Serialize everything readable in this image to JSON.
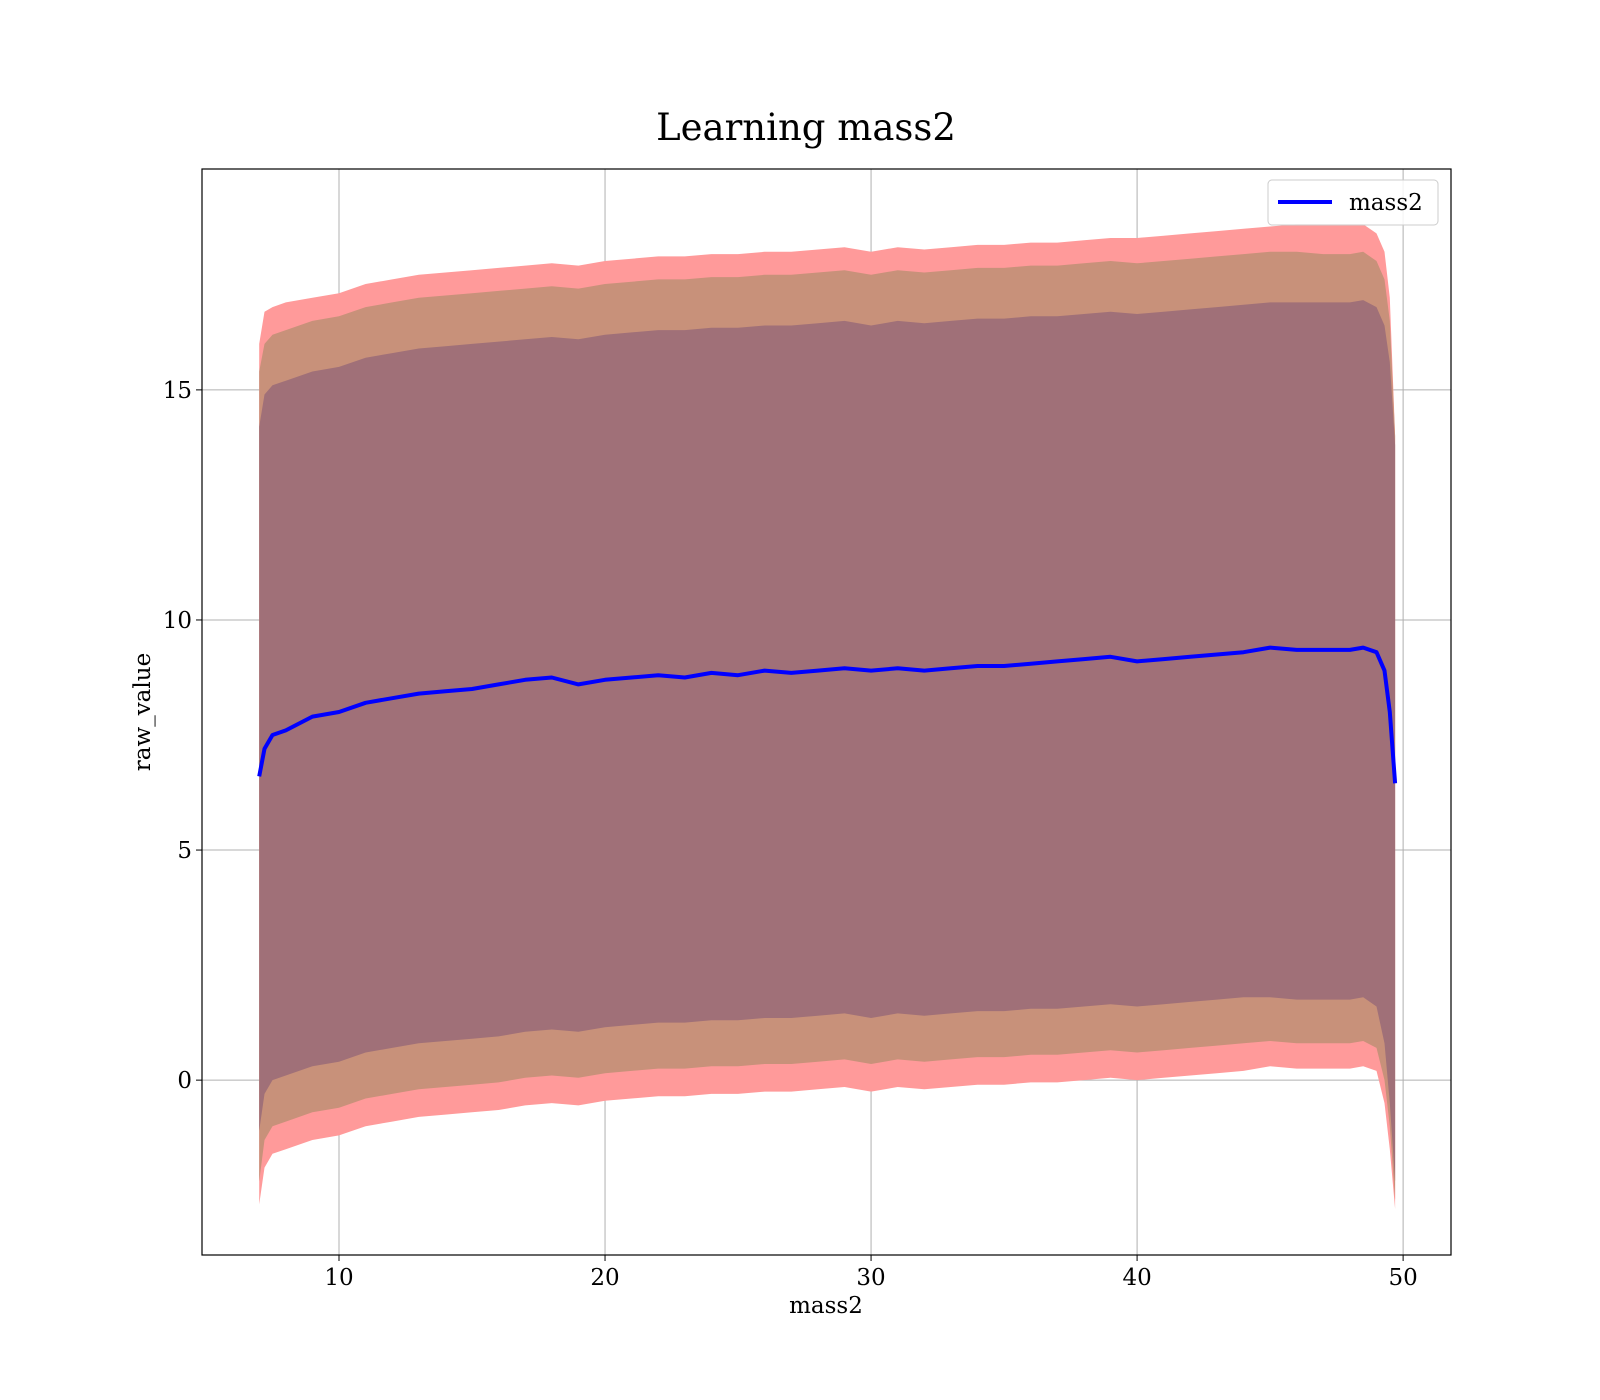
{
  "chart_data": {
    "type": "area",
    "title": "Learning mass2",
    "xlabel": "mass2",
    "ylabel": "raw_value",
    "xlim": [
      4.85,
      51.8
    ],
    "ylim": [
      -3.8,
      19.8
    ],
    "xticks": [
      10,
      20,
      30,
      40,
      50
    ],
    "yticks": [
      0,
      5,
      10,
      15
    ],
    "grid": true,
    "legend": {
      "placement": "top-right",
      "entries": [
        {
          "name": "mass2",
          "color": "#0000ff"
        }
      ]
    },
    "series": [
      {
        "name": "mass2",
        "kind": "line",
        "color": "#0000ff",
        "x": [
          7,
          7.2,
          7.5,
          8,
          9,
          10,
          11,
          12,
          13,
          14,
          15,
          16,
          17,
          18,
          19,
          20,
          21,
          22,
          23,
          24,
          25,
          26,
          27,
          28,
          29,
          30,
          31,
          32,
          33,
          34,
          35,
          36,
          37,
          38,
          39,
          40,
          41,
          42,
          43,
          44,
          45,
          46,
          47,
          48,
          48.5,
          49,
          49.3,
          49.5,
          49.7
        ],
        "y": [
          6.6,
          7.2,
          7.5,
          7.6,
          7.9,
          8.0,
          8.2,
          8.3,
          8.4,
          8.45,
          8.5,
          8.6,
          8.7,
          8.75,
          8.6,
          8.7,
          8.75,
          8.8,
          8.75,
          8.85,
          8.8,
          8.9,
          8.85,
          8.9,
          8.95,
          8.9,
          8.95,
          8.9,
          8.95,
          9.0,
          9.0,
          9.05,
          9.1,
          9.15,
          9.2,
          9.1,
          9.15,
          9.2,
          9.25,
          9.3,
          9.4,
          9.35,
          9.35,
          9.35,
          9.4,
          9.3,
          8.9,
          8.0,
          6.45
        ]
      }
    ],
    "bands": [
      {
        "name": "outer",
        "color": "#ff9a9a",
        "x": [
          7,
          7.2,
          7.5,
          8,
          9,
          10,
          11,
          12,
          13,
          14,
          15,
          16,
          17,
          18,
          19,
          20,
          21,
          22,
          23,
          24,
          25,
          26,
          27,
          28,
          29,
          30,
          31,
          32,
          33,
          34,
          35,
          36,
          37,
          38,
          39,
          40,
          41,
          42,
          43,
          44,
          45,
          46,
          47,
          48,
          48.5,
          49,
          49.3,
          49.5,
          49.7
        ],
        "upper": [
          16.0,
          16.7,
          16.8,
          16.9,
          17.0,
          17.1,
          17.3,
          17.4,
          17.5,
          17.55,
          17.6,
          17.65,
          17.7,
          17.75,
          17.7,
          17.8,
          17.85,
          17.9,
          17.9,
          17.95,
          17.95,
          18.0,
          18.0,
          18.05,
          18.1,
          18.0,
          18.1,
          18.05,
          18.1,
          18.15,
          18.15,
          18.2,
          18.2,
          18.25,
          18.3,
          18.3,
          18.35,
          18.4,
          18.45,
          18.5,
          18.55,
          18.6,
          18.6,
          18.6,
          18.6,
          18.4,
          18.0,
          17.0,
          14.0
        ],
        "lower": [
          -2.7,
          -1.9,
          -1.6,
          -1.5,
          -1.3,
          -1.2,
          -1.0,
          -0.9,
          -0.8,
          -0.75,
          -0.7,
          -0.65,
          -0.55,
          -0.5,
          -0.55,
          -0.45,
          -0.4,
          -0.35,
          -0.35,
          -0.3,
          -0.3,
          -0.25,
          -0.25,
          -0.2,
          -0.15,
          -0.25,
          -0.15,
          -0.2,
          -0.15,
          -0.1,
          -0.1,
          -0.05,
          -0.05,
          0.0,
          0.05,
          0.0,
          0.05,
          0.1,
          0.15,
          0.2,
          0.3,
          0.25,
          0.25,
          0.25,
          0.3,
          0.2,
          -0.5,
          -1.5,
          -2.8
        ]
      },
      {
        "name": "middle",
        "color": "#c8917a",
        "x": [
          7,
          7.2,
          7.5,
          8,
          9,
          10,
          11,
          12,
          13,
          14,
          15,
          16,
          17,
          18,
          19,
          20,
          21,
          22,
          23,
          24,
          25,
          26,
          27,
          28,
          29,
          30,
          31,
          32,
          33,
          34,
          35,
          36,
          37,
          38,
          39,
          40,
          41,
          42,
          43,
          44,
          45,
          46,
          47,
          48,
          48.5,
          49,
          49.3,
          49.5,
          49.7
        ],
        "upper": [
          15.4,
          16.0,
          16.2,
          16.3,
          16.5,
          16.6,
          16.8,
          16.9,
          17.0,
          17.05,
          17.1,
          17.15,
          17.2,
          17.25,
          17.2,
          17.3,
          17.35,
          17.4,
          17.4,
          17.45,
          17.45,
          17.5,
          17.5,
          17.55,
          17.6,
          17.5,
          17.6,
          17.55,
          17.6,
          17.65,
          17.65,
          17.7,
          17.7,
          17.75,
          17.8,
          17.75,
          17.8,
          17.85,
          17.9,
          17.95,
          18.0,
          18.0,
          17.95,
          17.95,
          18.0,
          17.8,
          17.4,
          16.5,
          14.0
        ],
        "lower": [
          -2.2,
          -1.3,
          -1.0,
          -0.9,
          -0.7,
          -0.6,
          -0.4,
          -0.3,
          -0.2,
          -0.15,
          -0.1,
          -0.05,
          0.05,
          0.1,
          0.05,
          0.15,
          0.2,
          0.25,
          0.25,
          0.3,
          0.3,
          0.35,
          0.35,
          0.4,
          0.45,
          0.35,
          0.45,
          0.4,
          0.45,
          0.5,
          0.5,
          0.55,
          0.55,
          0.6,
          0.65,
          0.6,
          0.65,
          0.7,
          0.75,
          0.8,
          0.85,
          0.8,
          0.8,
          0.8,
          0.85,
          0.7,
          0.0,
          -1.0,
          -2.6
        ]
      },
      {
        "name": "inner",
        "color": "#a07078",
        "x": [
          7,
          7.2,
          7.5,
          8,
          9,
          10,
          11,
          12,
          13,
          14,
          15,
          16,
          17,
          18,
          19,
          20,
          21,
          22,
          23,
          24,
          25,
          26,
          27,
          28,
          29,
          30,
          31,
          32,
          33,
          34,
          35,
          36,
          37,
          38,
          39,
          40,
          41,
          42,
          43,
          44,
          45,
          46,
          47,
          48,
          48.5,
          49,
          49.3,
          49.5,
          49.7
        ],
        "upper": [
          14.2,
          14.9,
          15.1,
          15.2,
          15.4,
          15.5,
          15.7,
          15.8,
          15.9,
          15.95,
          16.0,
          16.05,
          16.1,
          16.15,
          16.1,
          16.2,
          16.25,
          16.3,
          16.3,
          16.35,
          16.35,
          16.4,
          16.4,
          16.45,
          16.5,
          16.4,
          16.5,
          16.45,
          16.5,
          16.55,
          16.55,
          16.6,
          16.6,
          16.65,
          16.7,
          16.65,
          16.7,
          16.75,
          16.8,
          16.85,
          16.9,
          16.9,
          16.9,
          16.9,
          16.95,
          16.8,
          16.4,
          15.6,
          13.8
        ],
        "lower": [
          -1.1,
          -0.3,
          0.0,
          0.1,
          0.3,
          0.4,
          0.6,
          0.7,
          0.8,
          0.85,
          0.9,
          0.95,
          1.05,
          1.1,
          1.05,
          1.15,
          1.2,
          1.25,
          1.25,
          1.3,
          1.3,
          1.35,
          1.35,
          1.4,
          1.45,
          1.35,
          1.45,
          1.4,
          1.45,
          1.5,
          1.5,
          1.55,
          1.55,
          1.6,
          1.65,
          1.6,
          1.65,
          1.7,
          1.75,
          1.8,
          1.8,
          1.75,
          1.75,
          1.75,
          1.8,
          1.6,
          0.8,
          -0.5,
          -2.2
        ]
      }
    ]
  }
}
